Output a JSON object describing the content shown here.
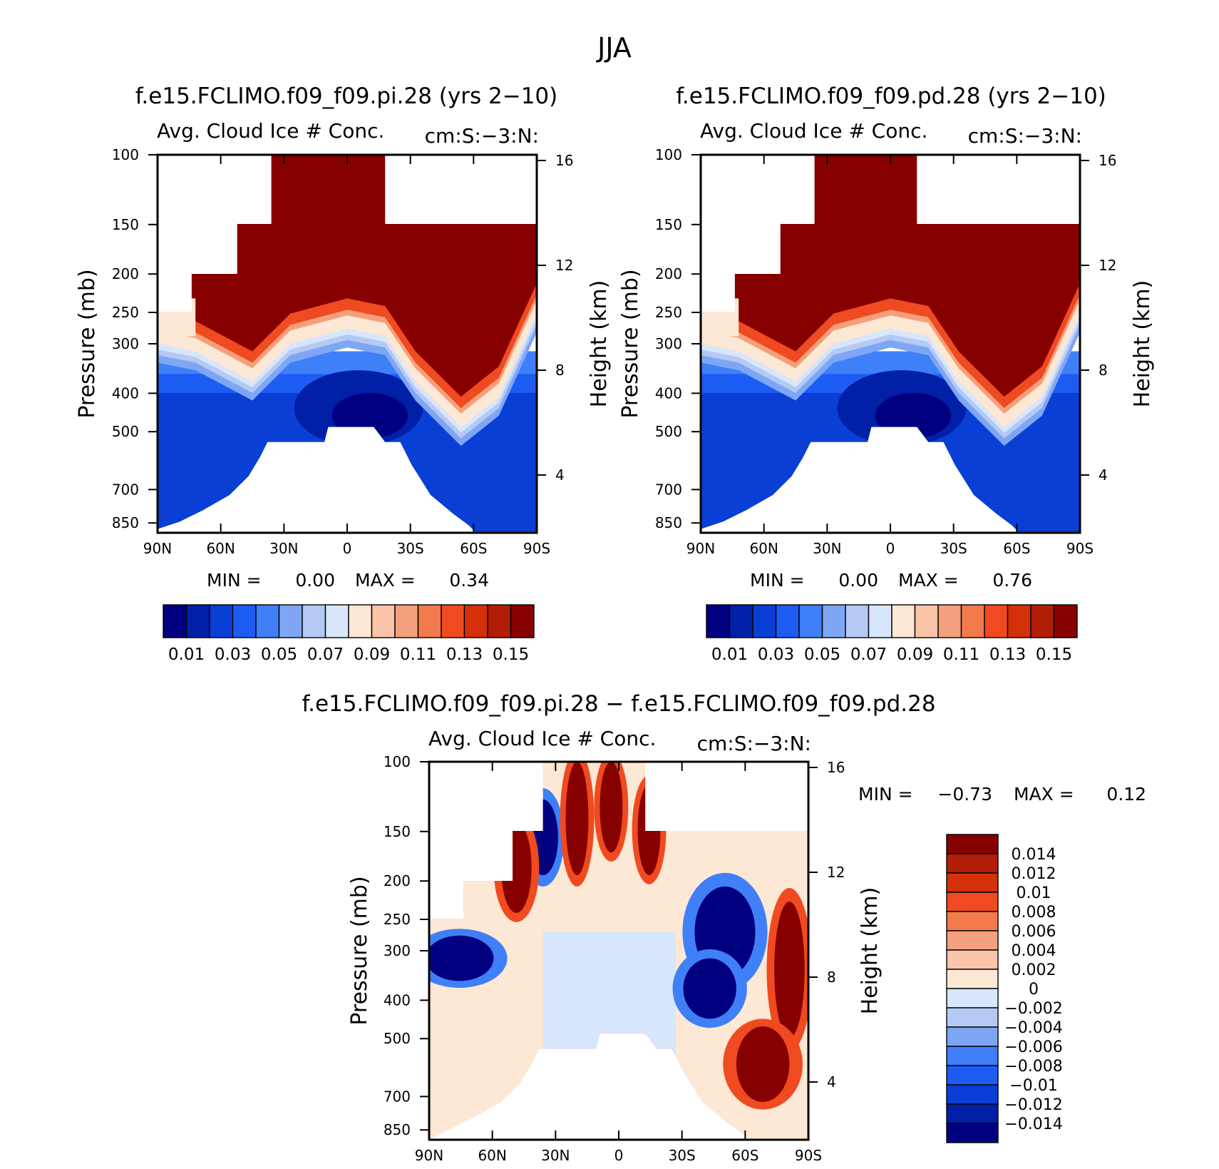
{
  "figure": {
    "title": "JJA"
  },
  "palettes": {
    "main": [
      "#000080",
      "#0020a8",
      "#0a3fd6",
      "#1c5cf2",
      "#3f7ff7",
      "#7ea6f5",
      "#b4c9f4",
      "#d7e6fb",
      "#fde7d5",
      "#f9c4a8",
      "#f4a07c",
      "#f27a4b",
      "#f04a20",
      "#d43009",
      "#b21d07",
      "#870000"
    ],
    "diff": [
      "#000080",
      "#0020a8",
      "#0a3fd6",
      "#1c5cf2",
      "#3f7ff7",
      "#7ea6f5",
      "#b4c9f4",
      "#d7e6fb",
      "#fde7d5",
      "#f9c4a8",
      "#f4a07c",
      "#f27a4b",
      "#f04a20",
      "#d43009",
      "#b21d07",
      "#870000"
    ]
  },
  "chart_data": [
    {
      "type": "contour",
      "panel": "top-left",
      "title": "f.e15.FCLIMO.f09_f09.pi.28 (yrs 2−10)",
      "subtitle": "Avg. Cloud Ice # Conc.",
      "units": "cm:S:−3:N:",
      "xlabel": "",
      "ylabel": "Pressure (mb)",
      "ylabel_right": "Height (km)",
      "x_ticks": [
        "90N",
        "60N",
        "30N",
        "0",
        "30S",
        "60S",
        "90S"
      ],
      "x_range": [
        90,
        -90
      ],
      "y_ticks": [
        100,
        150,
        200,
        250,
        300,
        400,
        500,
        700,
        850
      ],
      "y_range": [
        100,
        900
      ],
      "y_scale": "log",
      "right_ticks": [
        "16",
        "12",
        "8",
        "4"
      ],
      "min_label": "MIN =",
      "min_value": "0.00",
      "max_label": "MAX =",
      "max_value": "0.34",
      "levels": [
        "0.01",
        "0.03",
        "0.05",
        "0.07",
        "0.09",
        "0.11",
        "0.13",
        "0.15"
      ]
    },
    {
      "type": "contour",
      "panel": "top-right",
      "title": "f.e15.FCLIMO.f09_f09.pd.28 (yrs 2−10)",
      "subtitle": "Avg. Cloud Ice # Conc.",
      "units": "cm:S:−3:N:",
      "xlabel": "",
      "ylabel": "Pressure (mb)",
      "ylabel_right": "Height (km)",
      "x_ticks": [
        "90N",
        "60N",
        "30N",
        "0",
        "30S",
        "60S",
        "90S"
      ],
      "x_range": [
        90,
        -90
      ],
      "y_ticks": [
        100,
        150,
        200,
        250,
        300,
        400,
        500,
        700,
        850
      ],
      "y_range": [
        100,
        900
      ],
      "y_scale": "log",
      "right_ticks": [
        "16",
        "12",
        "8",
        "4"
      ],
      "min_label": "MIN =",
      "min_value": "0.00",
      "max_label": "MAX =",
      "max_value": "0.76",
      "levels": [
        "0.01",
        "0.03",
        "0.05",
        "0.07",
        "0.09",
        "0.11",
        "0.13",
        "0.15"
      ]
    },
    {
      "type": "contour",
      "panel": "bottom",
      "title": "f.e15.FCLIMO.f09_f09.pi.28 − f.e15.FCLIMO.f09_f09.pd.28",
      "subtitle": "Avg. Cloud Ice # Conc.",
      "units": "cm:S:−3:N:",
      "xlabel": "",
      "ylabel": "Pressure (mb)",
      "ylabel_right": "Height (km)",
      "x_ticks": [
        "90N",
        "60N",
        "30N",
        "0",
        "30S",
        "60S",
        "90S"
      ],
      "x_range": [
        90,
        -90
      ],
      "y_ticks": [
        100,
        150,
        200,
        250,
        300,
        400,
        500,
        700,
        850
      ],
      "y_range": [
        100,
        900
      ],
      "y_scale": "log",
      "right_ticks": [
        "16",
        "12",
        "8",
        "4"
      ],
      "min_label": "MIN =",
      "min_value": "−0.73",
      "max_label": "MAX =",
      "max_value": "0.12",
      "levels": [
        "0.014",
        "0.012",
        "0.01",
        "0.008",
        "0.006",
        "0.004",
        "0.002",
        "0",
        "−0.002",
        "−0.004",
        "−0.006",
        "−0.008",
        "−0.01",
        "−0.012",
        "−0.014"
      ]
    }
  ]
}
